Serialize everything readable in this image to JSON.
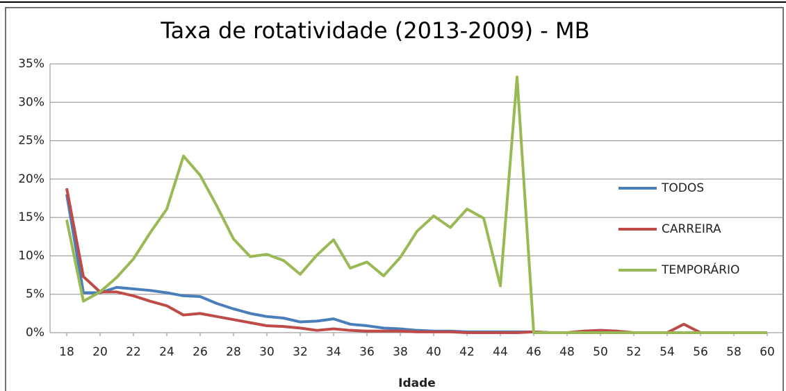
{
  "chart_data": {
    "type": "line",
    "title": "Taxa de rotatividade (2013-2009) - MB",
    "x_label": "Idade",
    "x": [
      18,
      19,
      20,
      21,
      22,
      23,
      24,
      25,
      26,
      27,
      28,
      29,
      30,
      31,
      32,
      33,
      34,
      35,
      36,
      37,
      38,
      39,
      40,
      41,
      42,
      43,
      44,
      45,
      46,
      47,
      48,
      49,
      50,
      51,
      52,
      53,
      54,
      55,
      56,
      57,
      58,
      59,
      60
    ],
    "xlim": [
      17,
      61
    ],
    "xticks": [
      18,
      20,
      22,
      24,
      26,
      28,
      30,
      32,
      34,
      36,
      38,
      40,
      42,
      44,
      46,
      48,
      50,
      52,
      54,
      56,
      58,
      60
    ],
    "ylim": [
      0,
      35
    ],
    "yticks": [
      {
        "value": 0,
        "label": "0%"
      },
      {
        "value": 5,
        "label": "5%"
      },
      {
        "value": 10,
        "label": "10%"
      },
      {
        "value": 15,
        "label": "15%"
      },
      {
        "value": 20,
        "label": "20%"
      },
      {
        "value": 25,
        "label": "25%"
      },
      {
        "value": 30,
        "label": "30%"
      },
      {
        "value": 35,
        "label": "35%"
      }
    ],
    "grid": true,
    "legend": "right",
    "series": [
      {
        "name": "TODOS",
        "color": "#4a7ebb",
        "values": [
          18,
          5.2,
          5.2,
          5.9,
          5.7,
          5.5,
          5.2,
          4.8,
          4.7,
          3.8,
          3.1,
          2.5,
          2.1,
          1.9,
          1.4,
          1.5,
          1.8,
          1.1,
          0.9,
          0.6,
          0.5,
          0.3,
          0.2,
          0.2,
          0.1,
          0.1,
          0.1,
          0.1,
          0.1,
          0,
          0,
          0,
          0,
          0,
          0,
          0,
          0,
          0,
          0,
          0,
          0,
          0,
          0
        ]
      },
      {
        "name": "CARREIRA",
        "color": "#be4b48",
        "values": [
          18.8,
          7.3,
          5.3,
          5.3,
          4.8,
          4.1,
          3.5,
          2.3,
          2.5,
          2.1,
          1.7,
          1.3,
          0.9,
          0.8,
          0.6,
          0.3,
          0.5,
          0.3,
          0.2,
          0.2,
          0.2,
          0.1,
          0.1,
          0.1,
          0,
          0,
          0,
          0,
          0.1,
          0,
          0,
          0.2,
          0.3,
          0.2,
          0,
          0,
          0,
          1.1,
          0,
          0,
          0,
          0,
          0
        ]
      },
      {
        "name": "TEMPORÁRIO",
        "color": "#98b954",
        "values": [
          14.7,
          4.1,
          5.3,
          7.2,
          9.6,
          13,
          16.1,
          23,
          20.5,
          16.5,
          12.2,
          9.9,
          10.2,
          9.4,
          7.6,
          10.1,
          12.1,
          8.4,
          9.2,
          7.4,
          9.8,
          13.2,
          15.2,
          13.7,
          16.1,
          14.9,
          6.1,
          33.3,
          0,
          0,
          0,
          0,
          0,
          0,
          0,
          0,
          0,
          0,
          0,
          0,
          0,
          0,
          0
        ]
      }
    ]
  }
}
